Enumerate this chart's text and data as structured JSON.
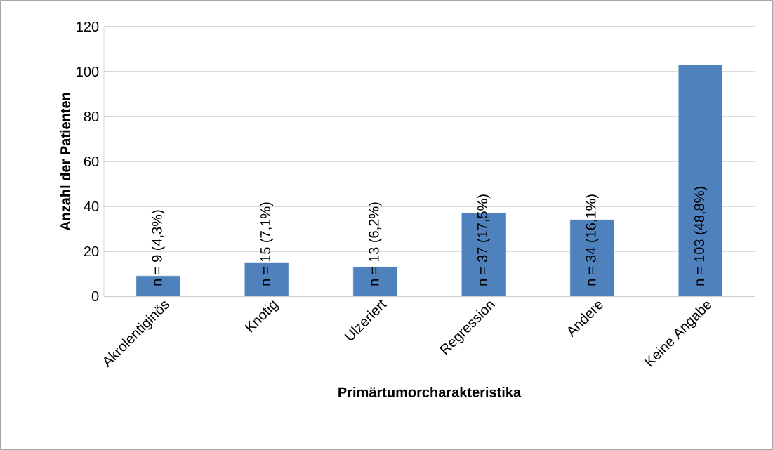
{
  "chart_data": {
    "type": "bar",
    "xlabel": "Primärtumorcharakteristika",
    "ylabel": "Anzahl der Patienten",
    "categories": [
      "Akrolentiginös",
      "Knotig",
      "Ulzeriert",
      "Regression",
      "Andere",
      "Keine Angabe"
    ],
    "values": [
      9,
      15,
      13,
      37,
      34,
      103
    ],
    "value_labels": [
      "n = 9 (4,3%)",
      "n = 15 (7,1%)",
      "n = 13 (6,2%)",
      "n = 37 (17,5%)",
      "n = 34 (16,1%)",
      "n = 103 (48,8%)"
    ],
    "color": "#4f81bd",
    "ylim": [
      0,
      120
    ],
    "yticks": [
      0,
      20,
      40,
      60,
      80,
      100,
      120
    ],
    "grid": "y"
  }
}
